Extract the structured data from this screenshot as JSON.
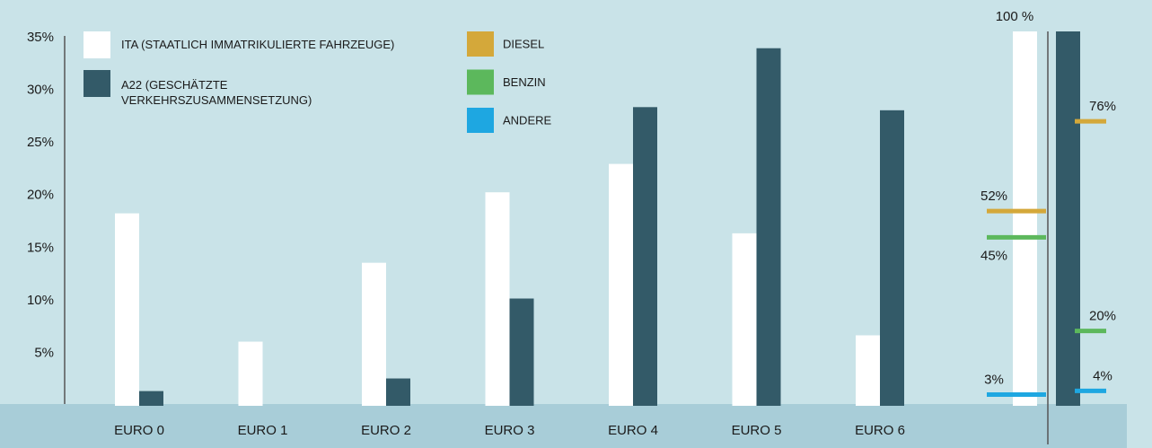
{
  "chart_data": [
    {
      "type": "bar",
      "categories": [
        "EURO 0",
        "EURO 1",
        "EURO 2",
        "EURO 3",
        "EURO 4",
        "EURO 5",
        "EURO 6"
      ],
      "series": [
        {
          "name": "ITA (STAATLICH IMMATRIKULIERTE FAHRZEUGE)",
          "color": "#ffffff",
          "values": [
            18.3,
            6.1,
            13.6,
            20.3,
            23.0,
            16.4,
            6.7
          ]
        },
        {
          "name": "A22 (GESCHÄTZTE VERKEHRSZUSAMMENSETZUNG)",
          "color": "#335a68",
          "values": [
            1.4,
            0,
            2.6,
            10.2,
            28.4,
            34.0,
            28.1
          ]
        }
      ],
      "ylim": [
        0,
        35
      ],
      "yticks": [
        {
          "value": 5,
          "label": "5%"
        },
        {
          "value": 10,
          "label": "10%"
        },
        {
          "value": 15,
          "label": "15%"
        },
        {
          "value": 20,
          "label": "20%"
        },
        {
          "value": 25,
          "label": "25%"
        },
        {
          "value": 30,
          "label": "30%"
        },
        {
          "value": 35,
          "label": "35%"
        }
      ]
    },
    {
      "type": "marker",
      "values": [
        100,
        100
      ],
      "value_labels": [
        "100 %",
        null
      ],
      "colors": [
        "#ffffff",
        "#335a68"
      ],
      "ylim": [
        0,
        100
      ],
      "series": [
        {
          "name": "DIESEL",
          "color": "#d4a83a",
          "values": [
            52,
            76
          ],
          "value_labels": [
            "52%",
            "76%"
          ]
        },
        {
          "name": "BENZIN",
          "color": "#5cb85c",
          "values": [
            45,
            20
          ],
          "value_labels": [
            "45%",
            "20%"
          ]
        },
        {
          "name": "ANDERE",
          "color": "#1ea7e1",
          "values": [
            3,
            4
          ],
          "value_labels": [
            "3%",
            "4%"
          ]
        }
      ]
    }
  ]
}
